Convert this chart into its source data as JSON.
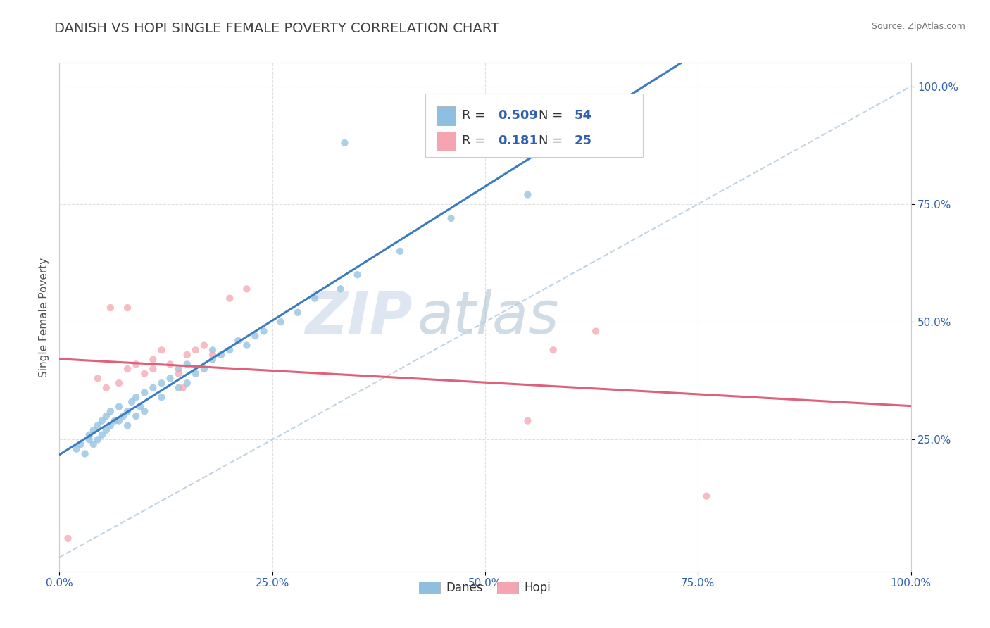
{
  "title": "DANISH VS HOPI SINGLE FEMALE POVERTY CORRELATION CHART",
  "source": "Source: ZipAtlas.com",
  "ylabel": "Single Female Poverty",
  "watermark_zip": "ZIP",
  "watermark_atlas": "atlas",
  "xmin": 0.0,
  "xmax": 1.0,
  "ymin": -0.03,
  "ymax": 1.05,
  "ytick_vals": [
    0.25,
    0.5,
    0.75,
    1.0
  ],
  "ytick_labels": [
    "25.0%",
    "50.0%",
    "75.0%",
    "100.0%"
  ],
  "xtick_vals": [
    0.0,
    0.25,
    0.5,
    0.75,
    1.0
  ],
  "xtick_labels": [
    "0.0%",
    "25.0%",
    "50.0%",
    "75.0%",
    "100.0%"
  ],
  "danes_color": "#8fbfe0",
  "hopi_color": "#f4a5b0",
  "danes_line_color": "#3a7cbf",
  "hopi_line_color": "#e0607a",
  "ref_line_color": "#bbcfdf",
  "danes_R": 0.509,
  "danes_N": 54,
  "hopi_R": 0.181,
  "hopi_N": 25,
  "background_color": "#ffffff",
  "grid_color": "#dddddd",
  "title_color": "#404040",
  "title_fontsize": 14,
  "tick_color": "#3060b0",
  "danes_x": [
    0.02,
    0.025,
    0.03,
    0.035,
    0.035,
    0.04,
    0.04,
    0.045,
    0.045,
    0.05,
    0.05,
    0.055,
    0.055,
    0.06,
    0.06,
    0.065,
    0.07,
    0.07,
    0.075,
    0.08,
    0.08,
    0.085,
    0.09,
    0.09,
    0.095,
    0.1,
    0.1,
    0.11,
    0.12,
    0.12,
    0.13,
    0.14,
    0.14,
    0.15,
    0.15,
    0.16,
    0.17,
    0.18,
    0.18,
    0.19,
    0.2,
    0.21,
    0.22,
    0.23,
    0.24,
    0.26,
    0.28,
    0.3,
    0.33,
    0.35,
    0.4,
    0.46,
    0.55,
    0.335
  ],
  "danes_y": [
    0.23,
    0.24,
    0.22,
    0.25,
    0.26,
    0.24,
    0.27,
    0.25,
    0.28,
    0.26,
    0.29,
    0.27,
    0.3,
    0.28,
    0.31,
    0.29,
    0.29,
    0.32,
    0.3,
    0.28,
    0.31,
    0.33,
    0.3,
    0.34,
    0.32,
    0.31,
    0.35,
    0.36,
    0.34,
    0.37,
    0.38,
    0.36,
    0.4,
    0.37,
    0.41,
    0.39,
    0.4,
    0.42,
    0.44,
    0.43,
    0.44,
    0.46,
    0.45,
    0.47,
    0.48,
    0.5,
    0.52,
    0.55,
    0.57,
    0.6,
    0.65,
    0.72,
    0.77,
    0.88
  ],
  "hopi_x": [
    0.01,
    0.045,
    0.055,
    0.06,
    0.07,
    0.08,
    0.08,
    0.09,
    0.1,
    0.11,
    0.11,
    0.12,
    0.13,
    0.14,
    0.145,
    0.15,
    0.16,
    0.17,
    0.18,
    0.2,
    0.22,
    0.55,
    0.58,
    0.63,
    0.76
  ],
  "hopi_y": [
    0.04,
    0.38,
    0.36,
    0.53,
    0.37,
    0.4,
    0.53,
    0.41,
    0.39,
    0.4,
    0.42,
    0.44,
    0.41,
    0.39,
    0.36,
    0.43,
    0.44,
    0.45,
    0.43,
    0.55,
    0.57,
    0.29,
    0.44,
    0.48,
    0.13
  ]
}
